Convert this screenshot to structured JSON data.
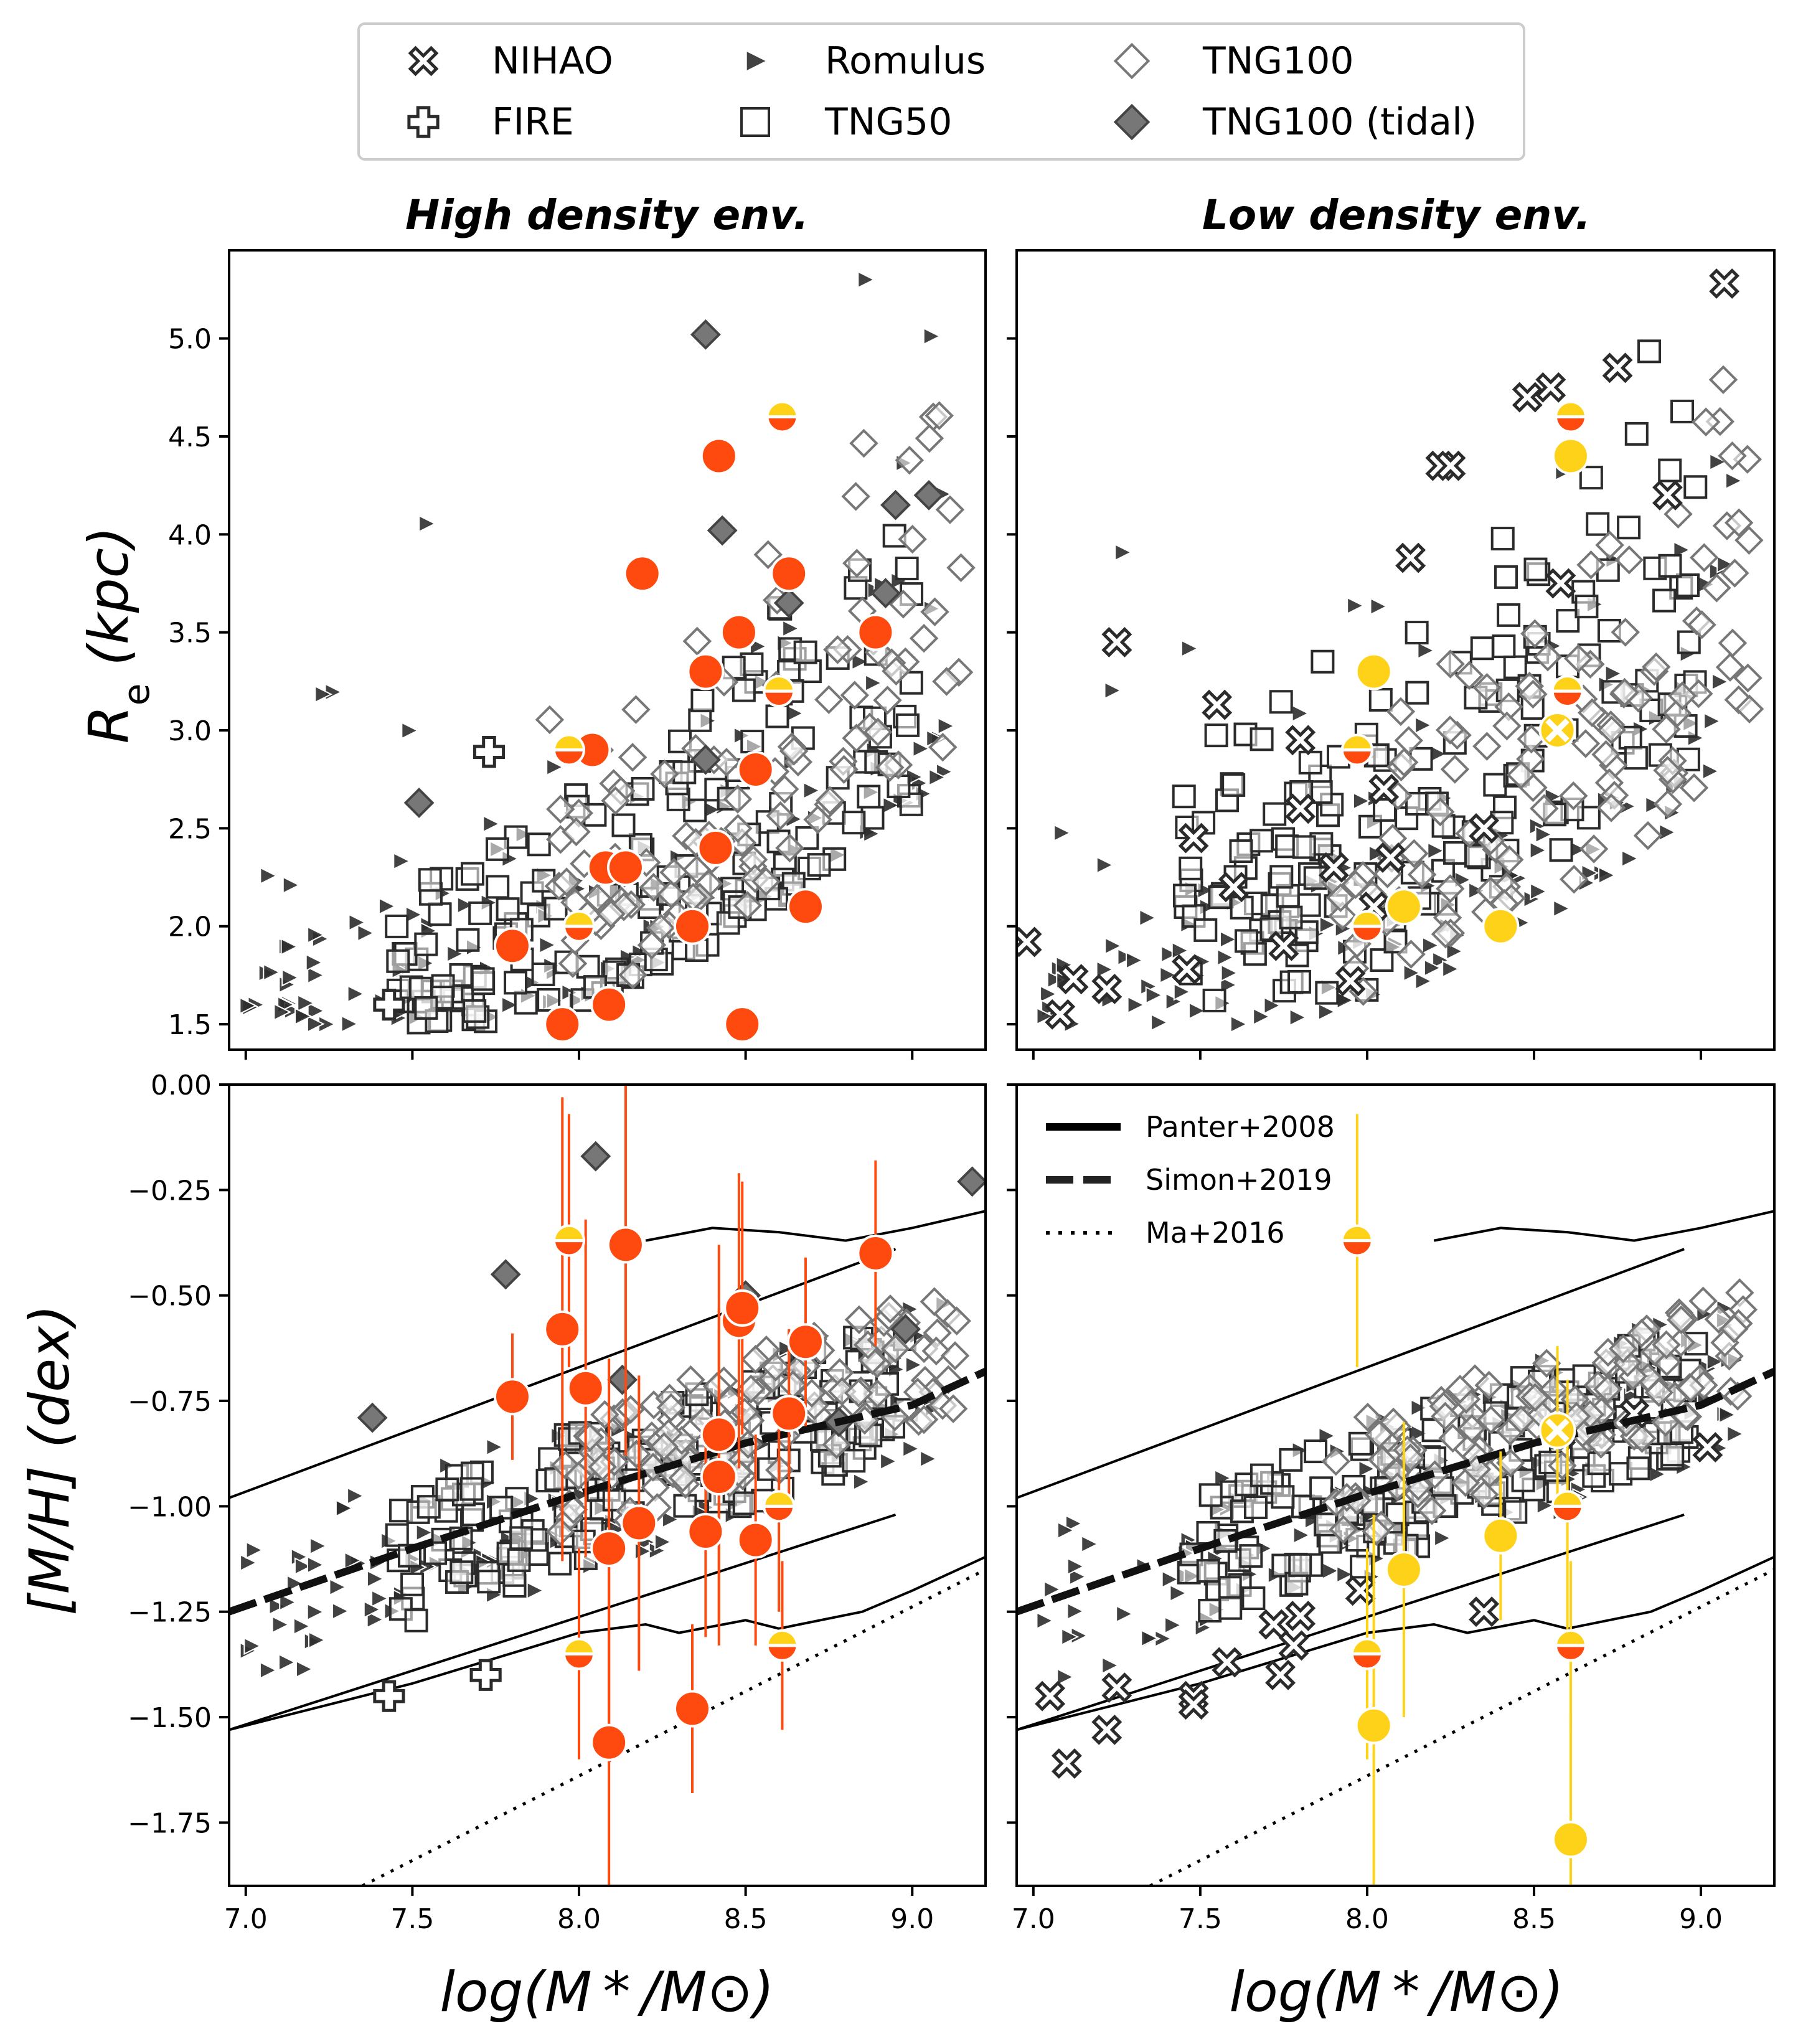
{
  "legend": {
    "entries": [
      {
        "key": "nihao",
        "label": "NIHAO",
        "marker": "x-icon"
      },
      {
        "key": "romulus",
        "label": "Romulus",
        "marker": "triangle-right-icon"
      },
      {
        "key": "tng100",
        "label": "TNG100",
        "marker": "diamond-open-icon"
      },
      {
        "key": "fire",
        "label": "FIRE",
        "marker": "plus-icon"
      },
      {
        "key": "tng50",
        "label": "TNG50",
        "marker": "square-open-icon"
      },
      {
        "key": "tng100tidal",
        "label": "TNG100 (tidal)",
        "marker": "diamond-filled-icon"
      }
    ]
  },
  "line_legend": {
    "entries": [
      {
        "label": "Panter+2008",
        "style": "solid"
      },
      {
        "label": "Simon+2019",
        "style": "dashed"
      },
      {
        "label": "Ma+2016",
        "style": "dotted"
      }
    ]
  },
  "colors": {
    "high_env": "#ff4a0f",
    "low_env": "#ffd21a",
    "sim": "#333333",
    "tidal": "#6a6a6a"
  },
  "chart_data": {
    "type": "scatter",
    "columns": [
      "High density env.",
      "Low density env."
    ],
    "xlabel": "log(M * /M⊙)",
    "xlim": [
      6.95,
      9.22
    ],
    "xticks": [
      "7.0",
      "7.5",
      "8.0",
      "8.5",
      "9.0"
    ],
    "top_row": {
      "ylabel": "R",
      "ylabel_sub": "e",
      "ylabel_unit": " (kpc)",
      "ylim": [
        1.37,
        5.45
      ],
      "yticks": [
        "1.5",
        "2.0",
        "2.5",
        "3.0",
        "3.5",
        "4.0",
        "4.5",
        "5.0"
      ]
    },
    "bottom_row": {
      "ylabel": "[M/H] (dex)",
      "ylim": [
        -1.9,
        0.0
      ],
      "yticks": [
        "0.00",
        "−0.25",
        "−0.50",
        "−0.75",
        "−1.00",
        "−1.25",
        "−1.50",
        "−1.75"
      ]
    },
    "observed": {
      "high": {
        "re": [
          [
            7.8,
            1.9
          ],
          [
            7.95,
            1.5
          ],
          [
            8.04,
            2.9
          ],
          [
            8.08,
            2.3
          ],
          [
            8.09,
            1.6
          ],
          [
            8.14,
            2.3
          ],
          [
            8.19,
            3.8
          ],
          [
            8.34,
            2.0
          ],
          [
            8.38,
            3.3
          ],
          [
            8.41,
            2.4
          ],
          [
            8.42,
            4.4
          ],
          [
            8.48,
            3.5
          ],
          [
            8.49,
            1.5
          ],
          [
            8.53,
            2.8
          ],
          [
            8.63,
            3.8
          ],
          [
            8.68,
            2.1
          ],
          [
            8.89,
            3.5
          ]
        ],
        "re_half": [
          [
            7.97,
            2.9
          ],
          [
            8.0,
            2.0
          ],
          [
            8.6,
            3.2
          ],
          [
            8.61,
            4.6
          ]
        ],
        "mh": [
          [
            7.8,
            -0.74,
            0.15
          ],
          [
            7.95,
            -0.58,
            0.55
          ],
          [
            8.02,
            -0.72,
            0.4
          ],
          [
            8.09,
            -1.1,
            0.45
          ],
          [
            8.09,
            -1.56,
            0.5
          ],
          [
            8.14,
            -0.38,
            0.5
          ],
          [
            8.18,
            -1.04,
            0.35
          ],
          [
            8.34,
            -1.48,
            0.2
          ],
          [
            8.38,
            -1.06,
            0.25
          ],
          [
            8.42,
            -0.83,
            0.45
          ],
          [
            8.42,
            -0.93,
            0.4
          ],
          [
            8.48,
            -0.56,
            0.35
          ],
          [
            8.49,
            -0.53,
            0.3
          ],
          [
            8.53,
            -1.08,
            0.25
          ],
          [
            8.63,
            -0.78,
            0.2
          ],
          [
            8.68,
            -0.61,
            0.2
          ],
          [
            8.89,
            -0.4,
            0.22
          ]
        ],
        "mh_half": [
          [
            7.97,
            -0.37,
            0.3
          ],
          [
            8.0,
            -1.35,
            0.25
          ],
          [
            8.6,
            -1.0,
            0.25
          ],
          [
            8.61,
            -1.33,
            0.2
          ]
        ]
      },
      "low": {
        "re": [
          [
            8.02,
            3.3
          ],
          [
            8.11,
            2.1
          ],
          [
            8.4,
            2.0
          ],
          [
            8.61,
            4.4
          ]
        ],
        "re_half": [
          [
            7.97,
            2.9
          ],
          [
            8.0,
            2.0
          ],
          [
            8.6,
            3.2
          ],
          [
            8.61,
            4.6
          ]
        ],
        "re_x": [
          [
            8.57,
            3.0
          ]
        ],
        "mh": [
          [
            8.02,
            -1.52,
            0.5
          ],
          [
            8.11,
            -1.15,
            0.35
          ],
          [
            8.4,
            -1.07,
            0.2
          ],
          [
            8.61,
            -1.79,
            0.3
          ]
        ],
        "mh_half": [
          [
            7.97,
            -0.37,
            0.3
          ],
          [
            8.0,
            -1.35,
            0.25
          ],
          [
            8.6,
            -1.0,
            0.3
          ],
          [
            8.61,
            -1.33,
            0.2
          ]
        ],
        "mh_x": [
          [
            8.57,
            -0.82,
            0.2
          ]
        ]
      }
    },
    "relations": {
      "panter_median": [
        [
          6.95,
          -1.25
        ],
        [
          7.5,
          -1.1
        ],
        [
          8.0,
          -0.97
        ],
        [
          8.5,
          -0.85
        ],
        [
          9.0,
          -0.76
        ],
        [
          9.22,
          -0.68
        ]
      ],
      "panter_lower": [
        [
          6.95,
          -1.53
        ],
        [
          7.5,
          -1.42
        ],
        [
          8.0,
          -1.3
        ],
        [
          8.2,
          -1.28
        ],
        [
          8.3,
          -1.3
        ],
        [
          8.5,
          -1.27
        ],
        [
          8.6,
          -1.29
        ],
        [
          8.85,
          -1.25
        ],
        [
          9.0,
          -1.2
        ],
        [
          9.22,
          -1.12
        ]
      ],
      "panter_upper": [
        [
          8.2,
          -0.37
        ],
        [
          8.4,
          -0.34
        ],
        [
          8.6,
          -0.35
        ],
        [
          8.8,
          -0.37
        ],
        [
          9.0,
          -0.34
        ],
        [
          9.22,
          -0.3
        ]
      ],
      "simon_high": [
        [
          6.95,
          -0.98
        ],
        [
          8.95,
          -0.39
        ]
      ],
      "simon_low": [
        [
          6.95,
          -1.53
        ],
        [
          8.95,
          -1.02
        ]
      ],
      "ma": [
        [
          7.35,
          -1.9
        ],
        [
          9.22,
          -1.15
        ]
      ]
    }
  }
}
